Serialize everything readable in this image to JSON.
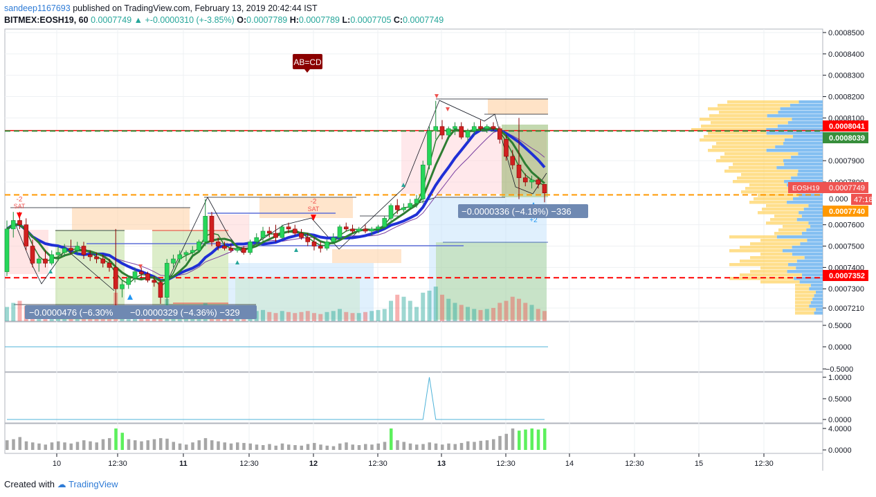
{
  "header": {
    "author": "sandeep1167693",
    "published": "published on TradingView.com, February 13, 2019 20:42:44 IST",
    "symbol": "BITMEX:EOSH19, 60",
    "last": "0.0007749",
    "change": "+-0.0000310 (+-3.85%)",
    "o_label": "O:",
    "o": "0.0007789",
    "h_label": "H:",
    "h": "0.0007789",
    "l_label": "L:",
    "l": "0.0007705",
    "c_label": "C:",
    "c": "0.0007749"
  },
  "footer": {
    "created_with": "Created with",
    "brand": "TradingView"
  },
  "chart_data": {
    "type": "candlestick",
    "symbol": "EOSH19",
    "price_axis": {
      "ticks": [
        "0.0008500",
        "0.0008400",
        "0.0008300",
        "0.0008200",
        "0.0008100",
        "0.0007900",
        "0.0007800",
        "0.0007600",
        "0.0007500",
        "0.0007400",
        "0.0007300",
        "0.0007210"
      ],
      "range": [
        0.00072,
        0.00085
      ]
    },
    "time_axis": {
      "ticks": [
        "10",
        "12:30",
        "11",
        "12:30",
        "12",
        "12:30",
        "13",
        "12:30",
        "14",
        "12:30",
        "15",
        "12:30"
      ],
      "bold": [
        "11",
        "12",
        "13"
      ]
    },
    "price_labels": [
      {
        "value": "0.0008041",
        "color": "#ff0000"
      },
      {
        "value": "0.0008039",
        "color": "#388e3c"
      },
      {
        "value": "EOSH19",
        "color": "#ef5350"
      },
      {
        "value": "0.0007749",
        "color": "#ef5350"
      },
      {
        "value": "47:18",
        "color": "#ef5350"
      },
      {
        "value": "0.0007740",
        "color": "#ff9800"
      },
      {
        "value": "0.0007352",
        "color": "#ff0000"
      }
    ],
    "horizontal_lines": [
      {
        "price": 0.0008041,
        "style": "solid",
        "color": "#ff0000"
      },
      {
        "price": 0.0008039,
        "style": "dashed",
        "color": "#388e3c"
      },
      {
        "price": 0.000774,
        "style": "dashed",
        "color": "#ff9800"
      },
      {
        "price": 0.0007352,
        "style": "dashed",
        "color": "#ff0000"
      }
    ],
    "annotations": {
      "pattern": "AB=CD",
      "measure_1": "−0.0000476 (−6.30%",
      "measure_2": "−0.0000329 (−4.36%) −329",
      "measure_3": "−0.0000336 (−4.18%) −336",
      "signal_1": "-2",
      "signal_1b": "SAT",
      "signal_2": "-2",
      "signal_2b": "SAT",
      "signal_3": "+2"
    },
    "price_tick_partial": "0.000",
    "ohlc": [
      [
        0.000738,
        0.000762,
        0.000736,
        0.000758
      ],
      [
        0.000758,
        0.000766,
        0.000754,
        0.000762
      ],
      [
        0.000762,
        0.000766,
        0.000758,
        0.00076
      ],
      [
        0.00076,
        0.000763,
        0.000748,
        0.00075
      ],
      [
        0.00075,
        0.000753,
        0.00074,
        0.000742
      ],
      [
        0.000742,
        0.000746,
        0.000738,
        0.000744
      ],
      [
        0.000744,
        0.000748,
        0.00074,
        0.000742
      ],
      [
        0.000742,
        0.000748,
        0.000741,
        0.000746
      ],
      [
        0.000746,
        0.00075,
        0.000743,
        0.000747
      ],
      [
        0.000747,
        0.000751,
        0.000745,
        0.000749
      ],
      [
        0.000749,
        0.000753,
        0.000746,
        0.000748
      ],
      [
        0.000748,
        0.000752,
        0.000746,
        0.00075
      ],
      [
        0.00075,
        0.000752,
        0.000744,
        0.000746
      ],
      [
        0.000746,
        0.000748,
        0.000743,
        0.000745
      ],
      [
        0.000745,
        0.000747,
        0.000742,
        0.000744
      ],
      [
        0.000744,
        0.000746,
        0.00074,
        0.000742
      ],
      [
        0.000742,
        0.000744,
        0.000738,
        0.00074
      ],
      [
        0.00074,
        0.000758,
        0.00072,
        0.00073
      ],
      [
        0.00073,
        0.000734,
        0.000726,
        0.000732
      ],
      [
        0.000732,
        0.000736,
        0.00073,
        0.000735
      ],
      [
        0.000735,
        0.00074,
        0.000733,
        0.000738
      ],
      [
        0.000738,
        0.00074,
        0.000735,
        0.000737
      ],
      [
        0.000737,
        0.000738,
        0.000733,
        0.000734
      ],
      [
        0.000734,
        0.000736,
        0.000731,
        0.000733
      ],
      [
        0.000733,
        0.000734,
        0.000723,
        0.000726
      ],
      [
        0.000726,
        0.000744,
        0.00072,
        0.000742
      ],
      [
        0.000742,
        0.000746,
        0.00074,
        0.000744
      ],
      [
        0.000744,
        0.000748,
        0.000742,
        0.000746
      ],
      [
        0.000746,
        0.000748,
        0.000743,
        0.000747
      ],
      [
        0.000747,
        0.00075,
        0.000745,
        0.000748
      ],
      [
        0.000748,
        0.000753,
        0.000747,
        0.000752
      ],
      [
        0.000752,
        0.000772,
        0.00075,
        0.000764
      ],
      [
        0.000764,
        0.000766,
        0.00075,
        0.000752
      ],
      [
        0.000752,
        0.000754,
        0.000748,
        0.00075
      ],
      [
        0.00075,
        0.000752,
        0.000748,
        0.000749
      ],
      [
        0.000749,
        0.000751,
        0.000747,
        0.000748
      ],
      [
        0.000748,
        0.00075,
        0.000747,
        0.000749
      ],
      [
        0.000749,
        0.00075,
        0.000746,
        0.000747
      ],
      [
        0.000747,
        0.000753,
        0.000746,
        0.000752
      ],
      [
        0.000752,
        0.000756,
        0.00075,
        0.000754
      ],
      [
        0.000754,
        0.000759,
        0.000752,
        0.000757
      ],
      [
        0.000757,
        0.000759,
        0.000754,
        0.000756
      ],
      [
        0.000756,
        0.00076,
        0.000752,
        0.000754
      ],
      [
        0.000754,
        0.00076,
        0.000753,
        0.000759
      ],
      [
        0.000759,
        0.000761,
        0.000756,
        0.000758
      ],
      [
        0.000758,
        0.00076,
        0.000755,
        0.000756
      ],
      [
        0.000756,
        0.000758,
        0.000753,
        0.000754
      ],
      [
        0.000754,
        0.000756,
        0.00075,
        0.000752
      ],
      [
        0.000752,
        0.000754,
        0.000748,
        0.00075
      ],
      [
        0.00075,
        0.000752,
        0.000747,
        0.000749
      ],
      [
        0.000749,
        0.000753,
        0.000748,
        0.000752
      ],
      [
        0.000752,
        0.000756,
        0.000751,
        0.000754
      ],
      [
        0.000754,
        0.00076,
        0.000753,
        0.000759
      ],
      [
        0.000759,
        0.000761,
        0.000757,
        0.000758
      ],
      [
        0.000758,
        0.00076,
        0.000756,
        0.000757
      ],
      [
        0.000757,
        0.000759,
        0.000756,
        0.000758
      ],
      [
        0.000758,
        0.00076,
        0.000756,
        0.000757
      ],
      [
        0.000757,
        0.000759,
        0.000755,
        0.000758
      ],
      [
        0.000758,
        0.00076,
        0.000756,
        0.000759
      ],
      [
        0.000759,
        0.000764,
        0.000758,
        0.000763
      ],
      [
        0.000763,
        0.00077,
        0.000762,
        0.000769
      ],
      [
        0.000769,
        0.000772,
        0.000765,
        0.000767
      ],
      [
        0.000767,
        0.00077,
        0.000766,
        0.000768
      ],
      [
        0.000768,
        0.000772,
        0.000767,
        0.00077
      ],
      [
        0.00077,
        0.000774,
        0.000768,
        0.000772
      ],
      [
        0.000772,
        0.00079,
        0.00077,
        0.000788
      ],
      [
        0.000788,
        0.000806,
        0.000786,
        0.000804
      ],
      [
        0.000804,
        0.000818,
        0.0008,
        0.000806
      ],
      [
        0.000806,
        0.000809,
        0.0008,
        0.000802
      ],
      [
        0.000802,
        0.000806,
        0.0008,
        0.000805
      ],
      [
        0.000805,
        0.000808,
        0.000802,
        0.000806
      ],
      [
        0.000806,
        0.000808,
        0.0008,
        0.000801
      ],
      [
        0.000801,
        0.000805,
        0.000799,
        0.000804
      ],
      [
        0.000804,
        0.000808,
        0.000802,
        0.000806
      ],
      [
        0.000806,
        0.000809,
        0.000804,
        0.000805
      ],
      [
        0.000805,
        0.000807,
        0.000803,
        0.000806
      ],
      [
        0.000806,
        0.000808,
        0.000804,
        0.000805
      ],
      [
        0.000805,
        0.000806,
        0.000798,
        0.0008
      ],
      [
        0.0008,
        0.000802,
        0.00079,
        0.000792
      ],
      [
        0.000792,
        0.000795,
        0.000786,
        0.000788
      ],
      [
        0.000788,
        0.00081,
        0.000772,
        0.000782
      ],
      [
        0.000782,
        0.000784,
        0.000778,
        0.00078
      ],
      [
        0.00078,
        0.000783,
        0.000777,
        0.000781
      ],
      [
        0.000781,
        0.000782,
        0.000777,
        0.000779
      ],
      [
        0.0007789,
        0.0007789,
        0.0007705,
        0.0007749
      ]
    ],
    "volume": [
      14,
      18,
      20,
      15,
      12,
      10,
      9,
      11,
      13,
      12,
      10,
      9,
      8,
      9,
      11,
      10,
      12,
      28,
      14,
      10,
      8,
      7,
      9,
      10,
      12,
      22,
      14,
      11,
      10,
      9,
      8,
      18,
      12,
      9,
      8,
      7,
      8,
      7,
      9,
      10,
      11,
      9,
      8,
      10,
      9,
      8,
      9,
      10,
      8,
      7,
      9,
      10,
      12,
      9,
      8,
      8,
      9,
      10,
      11,
      12,
      20,
      26,
      24,
      20,
      14,
      28,
      30,
      34,
      26,
      22,
      18,
      16,
      14,
      12,
      11,
      12,
      13,
      18,
      20,
      24,
      22,
      18,
      16,
      12,
      10
    ],
    "volume_colors_up": "#26a69a",
    "volume_colors_down": "#ef5350",
    "osc1": {
      "ticks": [
        "0.5000",
        "0.0000",
        "−0.5000"
      ],
      "value": 0
    },
    "osc2": {
      "ticks": [
        "1.0000",
        "0.5000",
        "0.0000"
      ],
      "spike_at": 66,
      "spike_value": 1
    },
    "osc3": {
      "ticks": [
        "4.0000",
        "0.0000"
      ],
      "values": [
        1.8,
        2.0,
        2.4,
        1.6,
        1.4,
        1.2,
        1.0,
        1.4,
        1.6,
        1.4,
        1.2,
        1.5,
        1.8,
        1.6,
        1.4,
        2.0,
        2.2,
        4.0,
        3.2,
        2.0,
        1.8,
        1.6,
        1.8,
        2.0,
        2.2,
        2.1,
        1.5,
        1.2,
        1.0,
        1.4,
        1.8,
        2.2,
        1.8,
        1.6,
        1.4,
        1.2,
        1.4,
        1.3,
        1.2,
        1.0,
        0.9,
        1.1,
        0.8,
        1.2,
        1.0,
        0.9,
        0.8,
        1.1,
        1.3,
        1.0,
        0.8,
        0.7,
        1.2,
        1.4,
        1.0,
        0.9,
        1.1,
        1.0,
        1.2,
        1.5,
        4.0,
        1.8,
        1.5,
        1.2,
        1.0,
        1.1,
        1.4,
        1.2,
        1.0,
        1.2,
        1.1,
        1.3,
        1.6,
        1.5,
        1.7,
        1.8,
        2.0,
        2.6,
        3.0,
        4.0,
        3.6,
        3.8,
        4.0,
        3.8,
        4.0
      ],
      "highlight_indices": [
        17,
        18,
        60,
        80,
        81,
        82,
        83,
        84
      ]
    }
  }
}
